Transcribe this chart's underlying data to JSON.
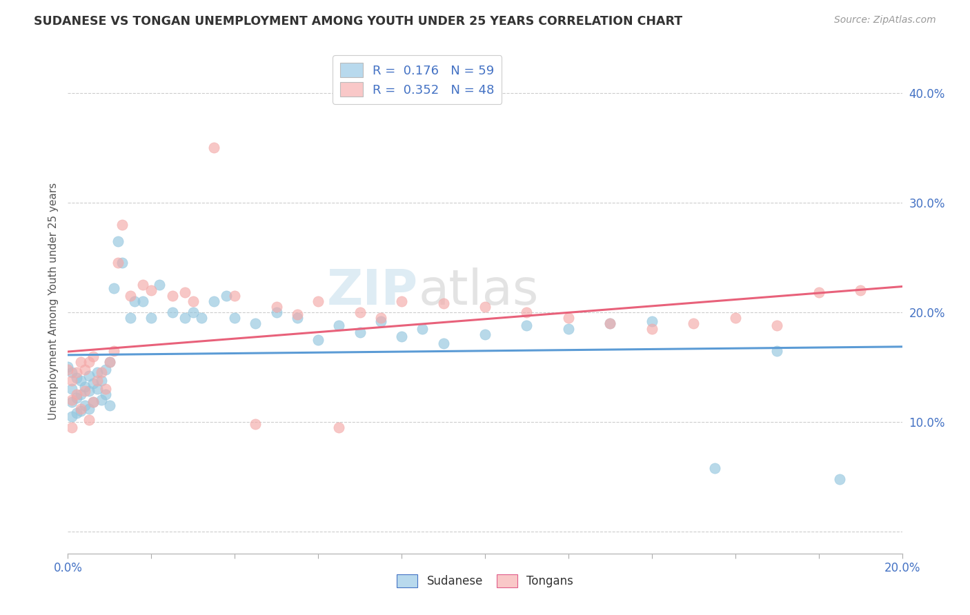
{
  "title": "SUDANESE VS TONGAN UNEMPLOYMENT AMONG YOUTH UNDER 25 YEARS CORRELATION CHART",
  "source": "Source: ZipAtlas.com",
  "ylabel": "Unemployment Among Youth under 25 years",
  "xlim": [
    0.0,
    0.2
  ],
  "ylim": [
    -0.02,
    0.44
  ],
  "yticks": [
    0.0,
    0.1,
    0.2,
    0.3,
    0.4
  ],
  "ytick_labels_right": [
    "",
    "10.0%",
    "20.0%",
    "30.0%",
    "40.0%"
  ],
  "legend_text1": "R =  0.176   N = 59",
  "legend_text2": "R =  0.352   N = 48",
  "sudanese_color": "#92c5de",
  "tongan_color": "#f4a9a8",
  "trend_blue_color": "#5b9bd5",
  "trend_pink_color": "#e8617a",
  "watermark": "ZIPatlas",
  "background_color": "#ffffff",
  "sudanese_x": [
    0.0,
    0.001,
    0.001,
    0.001,
    0.001,
    0.002,
    0.002,
    0.002,
    0.003,
    0.003,
    0.003,
    0.004,
    0.004,
    0.005,
    0.005,
    0.005,
    0.006,
    0.006,
    0.007,
    0.007,
    0.008,
    0.008,
    0.009,
    0.009,
    0.01,
    0.01,
    0.011,
    0.012,
    0.013,
    0.015,
    0.016,
    0.018,
    0.02,
    0.022,
    0.025,
    0.028,
    0.03,
    0.032,
    0.035,
    0.038,
    0.04,
    0.045,
    0.05,
    0.055,
    0.06,
    0.065,
    0.07,
    0.075,
    0.08,
    0.085,
    0.09,
    0.1,
    0.11,
    0.12,
    0.13,
    0.14,
    0.155,
    0.17,
    0.185
  ],
  "sudanese_y": [
    0.15,
    0.145,
    0.13,
    0.118,
    0.105,
    0.14,
    0.122,
    0.108,
    0.138,
    0.125,
    0.11,
    0.132,
    0.115,
    0.142,
    0.128,
    0.112,
    0.135,
    0.118,
    0.145,
    0.13,
    0.138,
    0.12,
    0.148,
    0.125,
    0.155,
    0.115,
    0.222,
    0.265,
    0.245,
    0.195,
    0.21,
    0.21,
    0.195,
    0.225,
    0.2,
    0.195,
    0.2,
    0.195,
    0.21,
    0.215,
    0.195,
    0.19,
    0.2,
    0.195,
    0.175,
    0.188,
    0.182,
    0.192,
    0.178,
    0.185,
    0.172,
    0.18,
    0.188,
    0.185,
    0.19,
    0.192,
    0.058,
    0.165,
    0.048
  ],
  "tongan_x": [
    0.0,
    0.001,
    0.001,
    0.001,
    0.002,
    0.002,
    0.003,
    0.003,
    0.004,
    0.004,
    0.005,
    0.005,
    0.006,
    0.006,
    0.007,
    0.008,
    0.009,
    0.01,
    0.011,
    0.012,
    0.013,
    0.015,
    0.018,
    0.02,
    0.025,
    0.028,
    0.03,
    0.035,
    0.04,
    0.045,
    0.05,
    0.055,
    0.06,
    0.065,
    0.07,
    0.075,
    0.08,
    0.09,
    0.1,
    0.11,
    0.12,
    0.13,
    0.14,
    0.15,
    0.16,
    0.17,
    0.18,
    0.19
  ],
  "tongan_y": [
    0.148,
    0.138,
    0.12,
    0.095,
    0.145,
    0.125,
    0.155,
    0.112,
    0.148,
    0.128,
    0.155,
    0.102,
    0.16,
    0.118,
    0.138,
    0.145,
    0.13,
    0.155,
    0.165,
    0.245,
    0.28,
    0.215,
    0.225,
    0.22,
    0.215,
    0.218,
    0.21,
    0.35,
    0.215,
    0.098,
    0.205,
    0.198,
    0.21,
    0.095,
    0.2,
    0.195,
    0.21,
    0.208,
    0.205,
    0.2,
    0.195,
    0.19,
    0.185,
    0.19,
    0.195,
    0.188,
    0.218,
    0.22
  ]
}
